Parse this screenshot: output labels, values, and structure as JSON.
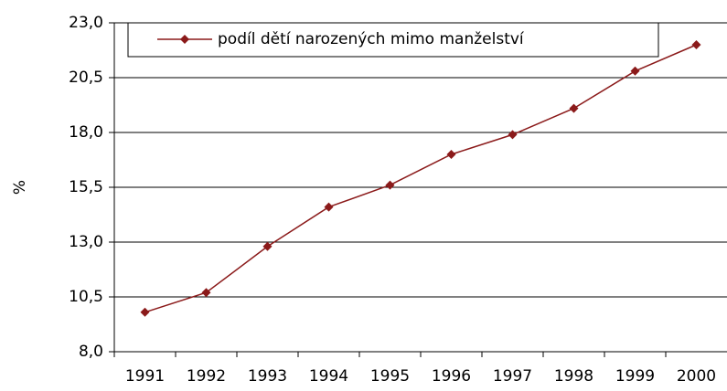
{
  "chart_data": {
    "type": "line",
    "legend": "podíl dětí narozených mimo manželství",
    "y_label": "%",
    "categories": [
      "1991",
      "1992",
      "1993",
      "1994",
      "1995",
      "1996",
      "1997",
      "1998",
      "1999",
      "2000"
    ],
    "series": [
      {
        "name": "podíl dětí narozených mimo manželství",
        "color": "#8b1a1a",
        "values": [
          9.8,
          10.7,
          12.8,
          14.6,
          15.6,
          17.0,
          17.9,
          19.1,
          20.8,
          22.0
        ]
      }
    ],
    "ylim": [
      8,
      23
    ],
    "yticks": [
      {
        "value": 8,
        "label": "8,0"
      },
      {
        "value": 10.5,
        "label": "10,5"
      },
      {
        "value": 13,
        "label": "13,0"
      },
      {
        "value": 15.5,
        "label": "15,5"
      },
      {
        "value": 18,
        "label": "18,0"
      },
      {
        "value": 20.5,
        "label": "20,5"
      },
      {
        "value": 23,
        "label": "23,0"
      }
    ],
    "grid": true
  }
}
